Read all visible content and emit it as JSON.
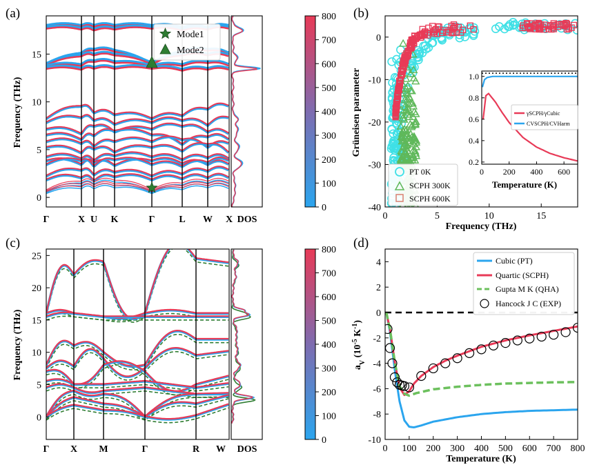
{
  "colors": {
    "cold": "#2ba5ee",
    "hot": "#e83a57",
    "green": "#2e7d32",
    "cyan": "#3fe0e6",
    "lightgreen": "#5fb85a",
    "qha": "#6cc05d"
  },
  "chart_data": [
    {
      "panel": "(a)",
      "type": "line",
      "title": "",
      "ylabel": "Frequency (THz)",
      "kpoints": [
        "Γ",
        "X",
        "U",
        "K",
        "Γ",
        "L",
        "W",
        "X"
      ],
      "ylim": [
        -1,
        19
      ],
      "yticks": [
        0,
        5,
        10,
        15
      ],
      "markers": [
        {
          "label": "Mode1",
          "symbol": "star",
          "x": "Γ",
          "y": 1.0
        },
        {
          "label": "Mode2",
          "symbol": "triangle",
          "x": "Γ",
          "y": 14.1
        }
      ],
      "dos_label": "DOS",
      "colorbar": {
        "min": 0,
        "max": 800,
        "ticks": [
          0,
          100,
          200,
          300,
          400,
          500,
          600,
          700,
          800
        ]
      }
    },
    {
      "panel": "(b)",
      "type": "scatter",
      "xlabel": "Frequency (THz)",
      "ylabel": "Grüneisen parameter",
      "xlim": [
        0,
        18.5
      ],
      "ylim": [
        -40,
        5
      ],
      "xticks": [
        0,
        5,
        10,
        15
      ],
      "yticks": [
        0,
        -10,
        -20,
        -30,
        -40
      ],
      "legend": [
        "PT 0K",
        "SCPH 300K",
        "SCPH 600K"
      ],
      "inset": {
        "type": "line",
        "xlabel": "Temperature (K)",
        "xlim": [
          0,
          700
        ],
        "ylim": [
          0.18,
          1.05
        ],
        "xticks": [
          0,
          200,
          400,
          600
        ],
        "yticks": [
          0.2,
          0.4,
          0.6,
          0.8,
          1.0
        ],
        "series": [
          {
            "name": "γSCPH/γCubic",
            "x": [
              10,
              30,
              50,
              100,
              150,
              200,
              300,
              400,
              500,
              600,
              700
            ],
            "y": [
              0.6,
              0.82,
              0.84,
              0.76,
              0.66,
              0.57,
              0.43,
              0.34,
              0.28,
              0.24,
              0.21
            ]
          },
          {
            "name": "CVSCPH/CVHarm",
            "x": [
              5,
              20,
              40,
              80,
              150,
              300,
              500,
              700
            ],
            "y": [
              0.9,
              0.97,
              0.99,
              1.0,
              1.0,
              1.0,
              1.0,
              1.0
            ]
          }
        ],
        "legend": [
          "γSCPH/γCubic",
          "CVSCPH/CVHarm"
        ],
        "legend_sup": [
          "SCPH",
          "Cubic",
          "SCPH",
          "Harm"
        ]
      }
    },
    {
      "panel": "(c)",
      "type": "line",
      "ylabel": "Frequency (THz)",
      "kpoints": [
        "Γ",
        "X",
        "M",
        "Γ",
        "R",
        "W"
      ],
      "ylim": [
        -3.5,
        26
      ],
      "yticks": [
        0,
        5,
        10,
        15,
        20,
        25
      ],
      "dos_label": "DOS",
      "colorbar": {
        "min": 0,
        "max": 800,
        "ticks": [
          0,
          100,
          200,
          300,
          400,
          500,
          600,
          700,
          800
        ]
      }
    },
    {
      "panel": "(d)",
      "type": "line",
      "xlabel": "Temperature (K)",
      "ylabel": "aV (10-5 K-1)",
      "ylabel_parts": {
        "main": "a",
        "sub": "V",
        "rest": " (10",
        "sup": "-5",
        "rest2": " K",
        "sup2": "-1",
        "end": ")"
      },
      "xlim": [
        0,
        800
      ],
      "ylim": [
        -10,
        5
      ],
      "xticks": [
        0,
        100,
        200,
        300,
        400,
        500,
        600,
        700,
        800
      ],
      "yticks": [
        4,
        2,
        0,
        -2,
        -4,
        -6,
        -8,
        -10
      ],
      "series": [
        {
          "name": "Cubic (PT)",
          "x": [
            5,
            20,
            40,
            60,
            80,
            100,
            120,
            150,
            200,
            300,
            400,
            500,
            600,
            700,
            800
          ],
          "y": [
            0,
            -1.5,
            -4.5,
            -7.0,
            -8.5,
            -9.0,
            -9.05,
            -8.9,
            -8.6,
            -8.25,
            -8.0,
            -7.85,
            -7.75,
            -7.7,
            -7.65
          ]
        },
        {
          "name": "Quartic (SCPH)",
          "x": [
            5,
            20,
            40,
            60,
            80,
            100,
            120,
            150,
            200,
            250,
            300,
            400,
            500,
            600,
            700,
            800
          ],
          "y": [
            0,
            -1.3,
            -3.9,
            -5.9,
            -6.5,
            -6.2,
            -5.6,
            -5.0,
            -4.3,
            -3.8,
            -3.4,
            -2.7,
            -2.2,
            -1.8,
            -1.45,
            -1.1
          ]
        },
        {
          "name": "Gupta M K  (QHA)",
          "x": [
            5,
            20,
            40,
            60,
            80,
            100,
            130,
            200,
            300,
            400,
            500,
            600,
            700,
            800
          ],
          "y": [
            0,
            -1.3,
            -3.9,
            -5.8,
            -6.4,
            -6.55,
            -6.35,
            -6.05,
            -5.85,
            -5.7,
            -5.6,
            -5.55,
            -5.5,
            -5.48
          ]
        },
        {
          "name": "Hancock J C (EXP)",
          "x": [
            10,
            20,
            30,
            40,
            50,
            60,
            70,
            80,
            100,
            150,
            200,
            250,
            300,
            350,
            400,
            450,
            500,
            550,
            600,
            650,
            700,
            750,
            800
          ],
          "y": [
            -1.3,
            -2.8,
            -4.0,
            -5.1,
            -5.5,
            -5.7,
            -5.75,
            -5.8,
            -5.9,
            -5.0,
            -4.4,
            -4.0,
            -3.6,
            -3.2,
            -2.9,
            -2.6,
            -2.4,
            -2.2,
            -2.05,
            -1.9,
            -1.75,
            -1.55,
            -1.2
          ],
          "style": "marker"
        }
      ],
      "reference_line": {
        "y": 0,
        "style": "dashed"
      },
      "legend": [
        "Cubic (PT)",
        "Quartic  (SCPH)",
        "Gupta M K  (QHA)",
        "Hancock J C (EXP)"
      ]
    }
  ]
}
